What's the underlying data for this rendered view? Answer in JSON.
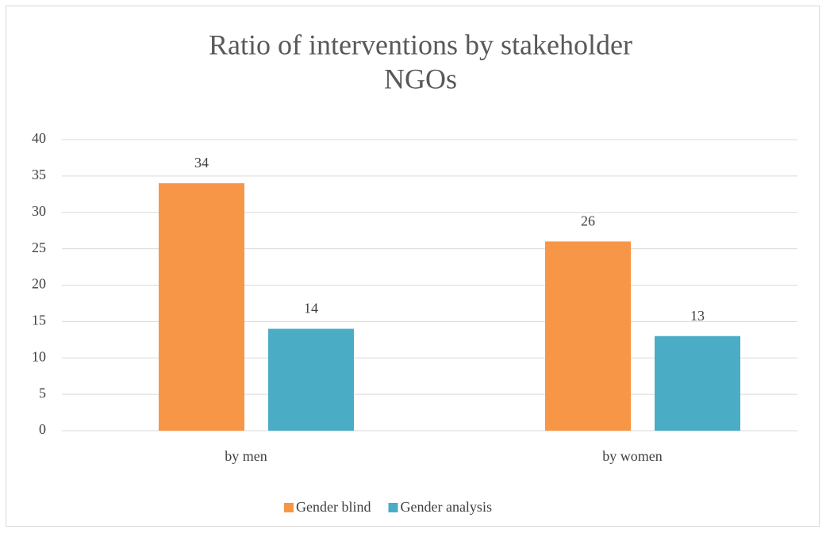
{
  "chart_data": {
    "type": "bar",
    "title": [
      "Ratio of interventions by stakeholder",
      "NGOs"
    ],
    "categories": [
      "by men",
      "by women"
    ],
    "series": [
      {
        "name": "Gender blind",
        "color": "#f79646",
        "values": [
          34,
          26
        ]
      },
      {
        "name": "Gender analysis",
        "color": "#4bacc6",
        "values": [
          14,
          13
        ]
      }
    ],
    "ylim": [
      0,
      40
    ],
    "yticks": [
      0,
      5,
      10,
      15,
      20,
      25,
      30,
      35,
      40
    ],
    "grid": true,
    "legend": "bottom"
  }
}
